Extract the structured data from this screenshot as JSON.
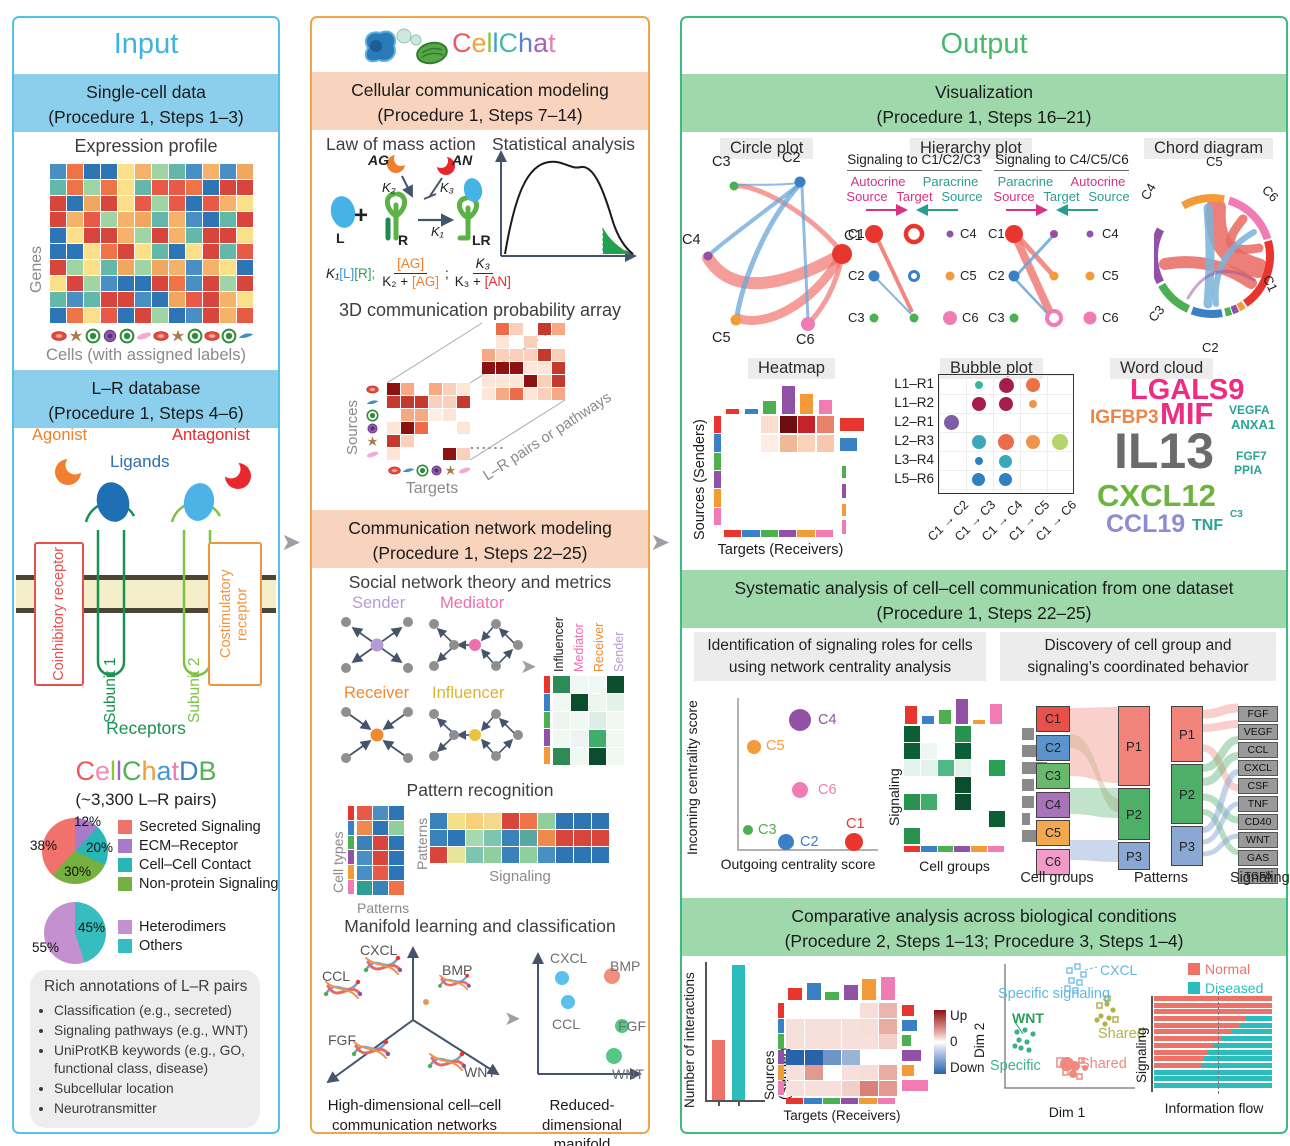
{
  "input": {
    "title": "Input",
    "single_cell": {
      "l1": "Single-cell data",
      "l2": "(Procedure 1, Steps 1–3)"
    },
    "expression_title": "Expression profile",
    "genes_label": "Genes",
    "cells_label": "Cells (with assigned labels)",
    "lr_db": {
      "l1": "L–R database",
      "l2": "(Procedure 1, Steps 4–6)"
    },
    "receptor": {
      "agonist": "Agonist",
      "antagonist": "Antagonist",
      "ligands": "Ligands",
      "coinhibitory": "Coinhibitory receptor",
      "costimulatory": "Costimulatory receptor",
      "subunit1": "Subunit 1",
      "subunit2": "Subunit 2",
      "receptors": "Receptors"
    },
    "db": {
      "letters": [
        {
          "ch": "C",
          "style": "color:#ef5a5f"
        },
        {
          "ch": "e",
          "style": "color:#ef8fb0"
        },
        {
          "ch": "l",
          "style": "color:#8bc53f"
        },
        {
          "ch": "l",
          "style": "color:#a661b8"
        },
        {
          "ch": "C",
          "style": "color:#52b254"
        },
        {
          "ch": "h",
          "style": "color:#f29b38"
        },
        {
          "ch": "a",
          "style": "color:#3f9bd8"
        },
        {
          "ch": "t",
          "style": "color:#e87fb4"
        },
        {
          "ch": "D",
          "style": "color:#3b7fc4"
        },
        {
          "ch": "B",
          "style": "color:#52b254"
        }
      ],
      "subtitle": "(~3,300 L–R pairs)",
      "pie1": {
        "style": "left:28px;top:800px;width:66px;height:66px;background:conic-gradient(#a87bc8 0 12%,#2ab6b6 12% 32%,#76b041 32% 62%,#f1726d 62% 100%)",
        "labels": [
          {
            "t": "12%",
            "style": "left:60px;top:796px"
          },
          {
            "t": "20%",
            "style": "left:72px;top:822px"
          },
          {
            "t": "30%",
            "style": "left:50px;top:846px"
          },
          {
            "t": "38%",
            "style": "left:16px;top:820px"
          }
        ],
        "legend": [
          {
            "label": "Secreted Signaling",
            "sw": "background:#f1726d"
          },
          {
            "label": "ECM–Receptor",
            "sw": "background:#a87bc8"
          },
          {
            "label": "Cell–Cell Contact",
            "sw": "background:#2ab6b6"
          },
          {
            "label": "Non-protein Signaling",
            "sw": "background:#76b041"
          }
        ]
      },
      "pie2": {
        "style": "left:30px;top:884px;width:62px;height:62px;background:conic-gradient(#35bdbf 0 45%,#c490cf 45% 100%)",
        "labels": [
          {
            "t": "45%",
            "style": "left:64px;top:902px"
          },
          {
            "t": "55%",
            "style": "left:18px;top:922px"
          }
        ],
        "legend": [
          {
            "label": "Heterodimers",
            "sw": "background:#c490cf"
          },
          {
            "label": "Others",
            "sw": "background:#35bdbf"
          }
        ]
      }
    },
    "annotations": {
      "title": "Rich annotations of L–R pairs",
      "items": [
        "Classification (e.g., secreted)",
        "Signaling pathways (e.g., WNT)",
        "UniProtKB keywords (e.g., GO, functional class, disease)",
        "Subcellular location",
        "Neurotransmitter"
      ]
    }
  },
  "cellchat": {
    "logo_letters": [
      {
        "ch": "C",
        "style": "color:#ef5a5f"
      },
      {
        "ch": "e",
        "style": "color:#f2a13c"
      },
      {
        "ch": "l",
        "style": "color:#8bc53f"
      },
      {
        "ch": "l",
        "style": "color:#3f9bd8"
      },
      {
        "ch": "C",
        "style": "color:#45b9a8"
      },
      {
        "ch": "h",
        "style": "color:#5b7fd4"
      },
      {
        "ch": "a",
        "style": "color:#a661b8"
      },
      {
        "ch": "t",
        "style": "color:#e87fb4"
      }
    ],
    "modeling": {
      "l1": "Cellular communication modeling",
      "l2": "(Procedure 1, Steps 7–14)"
    },
    "law_title": "Law of mass action",
    "stat_title": "Statistical analysis",
    "mass": {
      "AG": "AG",
      "AN": "AN",
      "K1": "K₁",
      "K2": "K₂",
      "K3": "K₃",
      "L": "L",
      "R": "R",
      "LR": "LR",
      "plus": "+"
    },
    "formula": {
      "f1k": "K₁",
      "f1l": "[L]",
      "f1r": "[R];",
      "f2top": "[AG]",
      "f2botk": "K₂ + ",
      "f2botv": "[AG]",
      "semi": ";",
      "f3top": "K₃",
      "f3botk": "K₃ + ",
      "f3botv": "[AN]"
    },
    "array_title": "3D communication probability array",
    "sources": "Sources",
    "targets": "Targets",
    "lr_pairs": "L–R pairs or pathways",
    "dots": "......",
    "network": {
      "l1": "Communication network modeling",
      "l2": "(Procedure 1, Steps 22–25)"
    },
    "social_title": "Social network theory and metrics",
    "roles": {
      "sender": "Sender",
      "mediator": "Mediator",
      "receiver": "Receiver",
      "influencer": "Influencer"
    },
    "matrix_cols": [
      {
        "label": "Influencer",
        "style": "color:#e0b32a"
      },
      {
        "label": "Mediator",
        "style": "color:#ef6eae"
      },
      {
        "label": "Receiver",
        "style": "color:#ef8b31"
      },
      {
        "label": "Sender",
        "style": "color:#b79bd6"
      }
    ],
    "pattern_title": "Pattern recognition",
    "cell_types": "Cell types",
    "patterns_a": "Patterns",
    "patterns_b": "Patterns",
    "signaling_b": "Signaling",
    "manifold_title": "Manifold learning and classification",
    "hd_labels": [
      "CXCL",
      "CCL",
      "BMP",
      "FGF",
      "WNT"
    ],
    "rd_labels": [
      "CXCL",
      "BMP",
      "CCL",
      "FGF",
      "WNT"
    ],
    "hd_caption": {
      "l1": "High-dimensional cell–cell",
      "l2": "communication networks"
    },
    "rd_caption": {
      "l1": "Reduced-dimensional",
      "l2": "manifold"
    }
  },
  "output": {
    "title": "Output",
    "viz": {
      "l1": "Visualization",
      "l2": "(Procedure 1, Steps 16–21)"
    },
    "circle_title": "Circle plot",
    "hierarchy_title": "Hierarchy plot",
    "chord_title": "Chord diagram",
    "clusters": [
      {
        "label": "C1",
        "color": "#e8352e"
      },
      {
        "label": "C2",
        "color": "#3b7fc4"
      },
      {
        "label": "C3",
        "color": "#4caf50"
      },
      {
        "label": "C4",
        "color": "#9152a5"
      },
      {
        "label": "C5",
        "color": "#f29b38"
      },
      {
        "label": "C6",
        "color": "#f07cb3"
      }
    ],
    "hier": {
      "left_header": "Signaling to C1/C2/C3",
      "right_header": "Signaling to C4/C5/C6",
      "autocrine": "Autocrine",
      "paracrine": "Paracrine",
      "source": "Source",
      "target": "Target"
    },
    "heatmap_title": "Heatmap",
    "sources_senders": "Sources (Senders)",
    "targets_receivers": "Targets (Receivers)",
    "bubble": {
      "title": "Bubble plot",
      "rows": [
        "L1–R1",
        "L1–R2",
        "L2–R1",
        "L2–R3",
        "L3–R4",
        "L5–R6"
      ],
      "cols": [
        "C1 → C2",
        "C1 → C3",
        "C1 → C4",
        "C1 → C5",
        "C1 → C6"
      ],
      "items": [
        {
          "style": "left:36px;top:6px;width:8px;height:8px;background:#3ab5a0"
        },
        {
          "style": "left:60px;top:3px;width:15px;height:15px;background:#a51d4d"
        },
        {
          "style": "left:87px;top:3px;width:14px;height:14px;background:#ee7046"
        },
        {
          "style": "left:33px;top:22px;width:14px;height:14px;background:#a51d4d"
        },
        {
          "style": "left:60px;top:22px;width:14px;height:14px;background:#a51d4d"
        },
        {
          "style": "left:90px;top:25px;width:8px;height:8px;background:#f0944d"
        },
        {
          "style": "left:5px;top:40px;width:15px;height:15px;background:#7b5ea7"
        },
        {
          "style": "left:33px;top:60px;width:14px;height:14px;background:#3aa8b8"
        },
        {
          "style": "left:59px;top:59px;width:16px;height:16px;background:#ee6a4c"
        },
        {
          "style": "left:87px;top:60px;width:14px;height:14px;background:#f0944d"
        },
        {
          "style": "left:113px;top:59px;width:16px;height:16px;background:#b5d56a"
        },
        {
          "style": "left:36px;top:82px;width:8px;height:8px;background:#2f7fc1"
        },
        {
          "style": "left:60px;top:80px;width:13px;height:13px;background:#3aa8b8"
        },
        {
          "style": "left:33px;top:98px;width:13px;height:13px;background:#2f7fc1"
        },
        {
          "style": "left:60px;top:98px;width:13px;height:13px;background:#2f7fc1"
        }
      ]
    },
    "wordcloud": {
      "title": "Word cloud",
      "words": [
        {
          "t": "LGALS9",
          "style": "left:448px;top:358px;font-size:29px;color:#ee2d82"
        },
        {
          "t": "IGFBP3",
          "style": "left:408px;top:390px;font-size:19px;color:#ef8443"
        },
        {
          "t": "MIF",
          "style": "left:478px;top:380px;font-size:31px;color:#ee2d82"
        },
        {
          "t": "VEGFA",
          "style": "left:547px;top:386px;font-size:12px;color:#2ba394"
        },
        {
          "t": "ANXA1",
          "style": "left:549px;top:400px;font-size:13px;color:#2ba394"
        },
        {
          "t": "IL13",
          "style": "left:432px;top:408px;font-size:50px;color:#6b6b6b"
        },
        {
          "t": "FGF7",
          "style": "left:554px;top:432px;font-size:12px;color:#2ba394"
        },
        {
          "t": "PPIA",
          "style": "left:552px;top:446px;font-size:12px;color:#2ba394"
        },
        {
          "t": "CXCL12",
          "style": "left:415px;top:462px;font-size:31px;color:#6cb33f"
        },
        {
          "t": "CCL19",
          "style": "left:424px;top:494px;font-size:25px;color:#8d8bd1"
        },
        {
          "t": "TNF",
          "style": "left:510px;top:500px;font-size:16px;color:#2ba394"
        },
        {
          "t": "C3",
          "style": "left:548px;top:492px;font-size:10px;color:#2ba394"
        }
      ]
    },
    "systematic": {
      "l1": "Systematic analysis of cell–cell communication from one dataset",
      "l2": "(Procedure 1, Steps 22–25)"
    },
    "box1": {
      "l1": "Identification of signaling roles for cells",
      "l2": "using network centrality analysis"
    },
    "box2": {
      "l1": "Discovery of cell group and",
      "l2": "signaling’s coordinated behavior"
    },
    "centrality": {
      "y": "Incoming centrality score",
      "x": "Outgoing centrality score"
    },
    "sig_heatmap": {
      "y": "Signaling",
      "x": "Cell groups"
    },
    "alluvial": {
      "col1": "Cell groups",
      "col2": "Patterns",
      "col3": "Signaling",
      "patterns": [
        "P1",
        "P2",
        "P3"
      ],
      "signaling": [
        "FGF",
        "VEGF",
        "CCL",
        "CXCL",
        "CSF",
        "TNF",
        "CD40",
        "WNT",
        "GAS",
        "TGFb"
      ]
    },
    "comparative": {
      "l1": "Comparative analysis across biological conditions",
      "l2": "(Procedure 2, Steps 1–13; Procedure 3, Steps 1–4)"
    },
    "interactions_label": "Number of interactions",
    "diff": {
      "y": "Sources (Sender)",
      "x": "Targets (Receivers)",
      "up": "Up",
      "zero": "0",
      "down": "Down"
    },
    "dim": {
      "x": "Dim 1",
      "y": "Dim 2",
      "cxcl": "CXCL",
      "specific_signaling": "Specific signaling",
      "wnt": "WNT",
      "shared1": "Shared",
      "specific": "Specific",
      "shared2": "Shared"
    },
    "flow": {
      "normal": "Normal",
      "diseased": "Diseased",
      "y": "Signaling",
      "x": "Information flow"
    }
  },
  "decor": {
    "expr": {
      "cols": 12,
      "rows": 10,
      "cw": 16,
      "ch": 15,
      "gap": 1,
      "seed": 3,
      "palette": [
        "#2e75b5",
        "#d8453c",
        "#ef7346",
        "#f6b26b",
        "#fcdf8a",
        "#9fd4a5",
        "#4a8fc3",
        "#e85948",
        "#63b8a9",
        "#2e75b5",
        "#d8453c",
        "#f2a75f"
      ]
    },
    "arrb": {
      "cols": 6,
      "rows": 6,
      "cw": 13,
      "ch": 12,
      "gap": 1,
      "seed": 9,
      "palette": [
        "#ffffff",
        "#fde5d8",
        "#fbd0ba",
        "#f7a983",
        "#ef6a48",
        "#c53a2e",
        "#8c1211",
        "#ffffff",
        "#fdeee6",
        "#fbd0ba",
        "#ffffff",
        "#fde5d8"
      ]
    },
    "arrf": {
      "cols": 6,
      "rows": 6,
      "cw": 13,
      "ch": 12,
      "gap": 1,
      "seed": 5,
      "palette": [
        "#ffffff",
        "#fde5d8",
        "#fbd0ba",
        "#f7a983",
        "#ef6a48",
        "#c53a2e",
        "#8c1211",
        "#ffffff",
        "#fdeee6",
        "#fbd0ba",
        "#ffffff",
        "#fde5d8"
      ]
    },
    "socmat": {
      "cols": 4,
      "cw": 17,
      "ch": 17,
      "gap": 1,
      "cells": [
        "#2e8b57",
        "#f0f8f4",
        "#f0f8f4",
        "#0b4d2c",
        "#f0f8f4",
        "#0b4d2c",
        "#eef5f1",
        "#e4f0ea",
        "#eef5f1",
        "#f0f8f4",
        "#dcefe6",
        "#f0f8f4",
        "#f0f8f4",
        "#eef5f1",
        "#3fae6a",
        "#f0f8f4",
        "#2e8b57",
        "#f0f8f4",
        "#0b4d2c",
        "#f0f8f4"
      ]
    },
    "pata": {
      "cols": 3,
      "cw": 15,
      "ch": 14,
      "gap": 1,
      "cells": [
        "#e85948",
        "#4a8fc3",
        "#2e75b5",
        "#ef8a4e",
        "#2e75b5",
        "#8fcf9d",
        "#3b82bb",
        "#d8453c",
        "#2e75b5",
        "#4a8fc3",
        "#d8453c",
        "#2e75b5",
        "#4a8fc3",
        "#e85948",
        "#2e75b5",
        "#2f9d8f",
        "#3b82bb",
        "#ef7346"
      ]
    },
    "patb": {
      "cols": 10,
      "cw": 17,
      "ch": 16,
      "gap": 1,
      "cells": [
        "#3b82bb",
        "#f5e08a",
        "#f8cf7a",
        "#f5d98a",
        "#d8453c",
        "#ef7346",
        "#8fcf9d",
        "#2e75b5",
        "#2e75b5",
        "#2e75b5",
        "#3b82bb",
        "#2e75b5",
        "#a8d8b0",
        "#7cc5b0",
        "#3b82bb",
        "#59a8a0",
        "#ef8a4e",
        "#d8453c",
        "#d8453c",
        "#d8453c",
        "#d8453c",
        "#e8e49a",
        "#7cc5b0",
        "#8fcf9d",
        "#3b82bb",
        "#8fcf9d",
        "#4a8fc3",
        "#2e75b5",
        "#2e75b5",
        "#2e75b5"
      ]
    },
    "vizheat": {
      "cols": 6,
      "cw": 17,
      "ch": 17,
      "gap": 1.5,
      "cells": [
        "#ffffff",
        "#ffffff",
        "#fbded2",
        "#6e0d10",
        "#c22427",
        "#e8836b",
        "#ffffff",
        "#ffffff",
        "#fdece3",
        "#f2b796",
        "#f8d2b9",
        "#f6c9ae",
        "#ffffff",
        "#ffffff",
        "#ffffff",
        "#ffffff",
        "#ffffff",
        "#ffffff",
        "#ffffff",
        "#ffffff",
        "#ffffff",
        "#ffffff",
        "#ffffff",
        "#ffffff",
        "#ffffff",
        "#ffffff",
        "#ffffff",
        "#ffffff",
        "#ffffff",
        "#ffffff",
        "#ffffff",
        "#ffffff",
        "#ffffff",
        "#ffffff",
        "#ffffff",
        "#ffffff"
      ]
    },
    "sigheat": {
      "cols": 6,
      "cw": 16,
      "ch": 16,
      "gap": 1,
      "cells": [
        "#0c5e34",
        "#ffffff",
        "#ffffff",
        "#27934f",
        "#ffffff",
        "#ffffff",
        "#0c5e34",
        "#eef7f2",
        "#ffffff",
        "#0c5e34",
        "#ffffff",
        "#ffffff",
        "#e4f2ec",
        "#e4f2ec",
        "#52b788",
        "#e4f2ec",
        "#ffffff",
        "#2d9e58",
        "#ffffff",
        "#ffffff",
        "#ffffff",
        "#0b4d2c",
        "#ffffff",
        "#ffffff",
        "#27934f",
        "#3fae6a",
        "#ffffff",
        "#0b4d2c",
        "#ffffff",
        "#ffffff",
        "#ffffff",
        "#ffffff",
        "#ffffff",
        "#ffffff",
        "#ffffff",
        "#0c5e34",
        "#27934f",
        "#ffffff",
        "#ffffff",
        "#ffffff",
        "#ffffff",
        "#ffffff"
      ]
    },
    "diffheat": {
      "cols": 6,
      "cw": 18,
      "ch": 15,
      "gap": 0.5,
      "cells": [
        "#ffffff",
        "#ffffff",
        "#ffffff",
        "#ffffff",
        "#f6ddd8",
        "#eab6ae",
        "#f7e0db",
        "#f7e0db",
        "#f7e0db",
        "#f7e0db",
        "#f6ddd8",
        "#e8aca3",
        "#f7e0db",
        "#f7e0db",
        "#f7e0db",
        "#f7e0db",
        "#f7e0db",
        "#f2cfc8",
        "#2862a8",
        "#2862a8",
        "#6f94c6",
        "#9ab4d6",
        "#ffffff",
        "#ffffff",
        "#f7e0db",
        "#e2998f",
        "#ffffff",
        "#f7e0db",
        "#f6ddd8",
        "#e8aca3",
        "#f7e0db",
        "#f7e0db",
        "#f7e0db",
        "#f2cfc8",
        "#d98078",
        "#e2998f"
      ]
    }
  }
}
